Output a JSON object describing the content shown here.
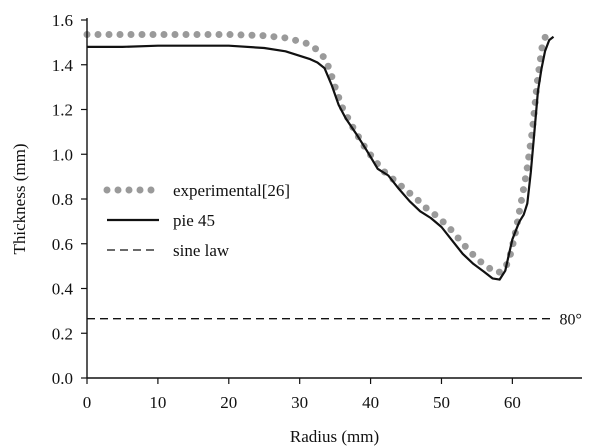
{
  "chart_data": {
    "type": "line",
    "title": "",
    "xlabel": "Radius (mm)",
    "ylabel": "Thickness (mm)",
    "xlim": [
      0,
      67
    ],
    "ylim": [
      0,
      1.6
    ],
    "x_ticks": [
      "0",
      "10",
      "20",
      "30",
      "40",
      "50",
      "60"
    ],
    "y_ticks": [
      "0.0",
      "0.2",
      "0.4",
      "0.6",
      "0.8",
      "1.0",
      "1.2",
      "1.4",
      "1.6"
    ],
    "grid": false,
    "legend_position": "middle-left",
    "annotation": {
      "text": "80°",
      "x": 67.5,
      "y": 0.265
    },
    "series": [
      {
        "name": "experimental[26]",
        "style": "dotted",
        "color": "#9a9a9a",
        "points": [
          [
            0,
            1.535
          ],
          [
            2,
            1.535
          ],
          [
            5,
            1.535
          ],
          [
            10,
            1.535
          ],
          [
            15,
            1.535
          ],
          [
            20,
            1.535
          ],
          [
            25,
            1.53
          ],
          [
            28,
            1.52
          ],
          [
            30,
            1.505
          ],
          [
            31.5,
            1.49
          ],
          [
            32.5,
            1.465
          ],
          [
            33.5,
            1.43
          ],
          [
            34.2,
            1.38
          ],
          [
            35,
            1.3
          ],
          [
            36,
            1.21
          ],
          [
            37.5,
            1.12
          ],
          [
            39,
            1.04
          ],
          [
            40.5,
            0.975
          ],
          [
            42,
            0.92
          ],
          [
            43.5,
            0.88
          ],
          [
            45,
            0.84
          ],
          [
            46.5,
            0.8
          ],
          [
            48,
            0.755
          ],
          [
            49.5,
            0.72
          ],
          [
            51,
            0.675
          ],
          [
            52.5,
            0.62
          ],
          [
            54,
            0.565
          ],
          [
            55.5,
            0.52
          ],
          [
            57,
            0.485
          ],
          [
            58,
            0.47
          ],
          [
            59,
            0.49
          ],
          [
            59.8,
            0.56
          ],
          [
            60.5,
            0.66
          ],
          [
            61.2,
            0.78
          ],
          [
            62,
            0.92
          ],
          [
            62.8,
            1.1
          ],
          [
            63.5,
            1.32
          ],
          [
            64.2,
            1.48
          ],
          [
            64.8,
            1.54
          ],
          [
            65.2,
            1.555
          ]
        ]
      },
      {
        "name": "pie 45",
        "style": "solid",
        "color": "#111111",
        "points": [
          [
            0,
            1.48
          ],
          [
            5,
            1.48
          ],
          [
            10,
            1.485
          ],
          [
            15,
            1.485
          ],
          [
            20,
            1.485
          ],
          [
            25,
            1.475
          ],
          [
            28,
            1.46
          ],
          [
            30,
            1.44
          ],
          [
            31.5,
            1.425
          ],
          [
            32.5,
            1.41
          ],
          [
            33.5,
            1.385
          ],
          [
            34.5,
            1.31
          ],
          [
            35.5,
            1.22
          ],
          [
            36.5,
            1.16
          ],
          [
            38,
            1.09
          ],
          [
            39.5,
            1.015
          ],
          [
            41,
            0.935
          ],
          [
            42.5,
            0.905
          ],
          [
            44,
            0.845
          ],
          [
            45.5,
            0.79
          ],
          [
            47,
            0.745
          ],
          [
            48.5,
            0.715
          ],
          [
            50,
            0.675
          ],
          [
            51.5,
            0.615
          ],
          [
            53,
            0.555
          ],
          [
            54.5,
            0.51
          ],
          [
            56,
            0.475
          ],
          [
            57.2,
            0.445
          ],
          [
            58.2,
            0.44
          ],
          [
            59,
            0.48
          ],
          [
            59.5,
            0.55
          ],
          [
            60,
            0.62
          ],
          [
            60.5,
            0.66
          ],
          [
            61,
            0.7
          ],
          [
            61.6,
            0.73
          ],
          [
            62.1,
            0.78
          ],
          [
            62.6,
            0.92
          ],
          [
            63.1,
            1.1
          ],
          [
            63.6,
            1.28
          ],
          [
            64.1,
            1.38
          ],
          [
            64.6,
            1.46
          ],
          [
            65.2,
            1.51
          ],
          [
            65.8,
            1.525
          ]
        ]
      },
      {
        "name": "sine law",
        "style": "dashed",
        "color": "#111111",
        "points": [
          [
            0,
            0.265
          ],
          [
            66,
            0.265
          ]
        ]
      }
    ]
  }
}
